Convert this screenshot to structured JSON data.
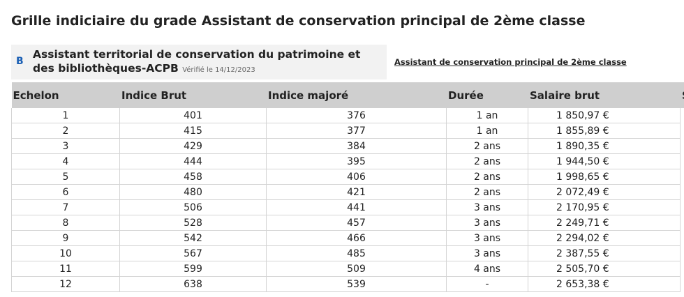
{
  "page": {
    "title": "Grille indiciaire du grade Assistant de conservation principal de 2ème classe"
  },
  "grade": {
    "category": "B",
    "name_line1": "Assistant territorial de conservation du patrimoine et",
    "name_line2": "des bibliothèques-ACPB",
    "verified": "Vérifié le 14/12/2023",
    "link_label": "Assistant de conservation principal de 2ème classe"
  },
  "table": {
    "headers": [
      "Echelon",
      "Indice Brut",
      "Indice majoré",
      "Durée",
      "Salaire brut",
      "S"
    ],
    "rows": [
      {
        "echelon": "1",
        "brut": "401",
        "majore": "376",
        "duree": "1 an",
        "salaire": "1 850,97 €"
      },
      {
        "echelon": "2",
        "brut": "415",
        "majore": "377",
        "duree": "1 an",
        "salaire": "1 855,89 €"
      },
      {
        "echelon": "3",
        "brut": "429",
        "majore": "384",
        "duree": "2 ans",
        "salaire": "1 890,35 €"
      },
      {
        "echelon": "4",
        "brut": "444",
        "majore": "395",
        "duree": "2 ans",
        "salaire": "1 944,50 €"
      },
      {
        "echelon": "5",
        "brut": "458",
        "majore": "406",
        "duree": "2 ans",
        "salaire": "1 998,65 €"
      },
      {
        "echelon": "6",
        "brut": "480",
        "majore": "421",
        "duree": "2 ans",
        "salaire": "2 072,49 €"
      },
      {
        "echelon": "7",
        "brut": "506",
        "majore": "441",
        "duree": "3 ans",
        "salaire": "2 170,95 €"
      },
      {
        "echelon": "8",
        "brut": "528",
        "majore": "457",
        "duree": "3 ans",
        "salaire": "2 249,71 €"
      },
      {
        "echelon": "9",
        "brut": "542",
        "majore": "466",
        "duree": "3 ans",
        "salaire": "2 294,02 €"
      },
      {
        "echelon": "10",
        "brut": "567",
        "majore": "485",
        "duree": "3 ans",
        "salaire": "2 387,55 €"
      },
      {
        "echelon": "11",
        "brut": "599",
        "majore": "509",
        "duree": "4 ans",
        "salaire": "2 505,70 €"
      },
      {
        "echelon": "12",
        "brut": "638",
        "majore": "539",
        "duree": "-",
        "salaire": "2 653,38 €"
      }
    ]
  },
  "colors": {
    "header_bg": "#cfcfcf",
    "grade_box_bg": "#f2f2f2",
    "category_accent": "#1a5fb4"
  }
}
